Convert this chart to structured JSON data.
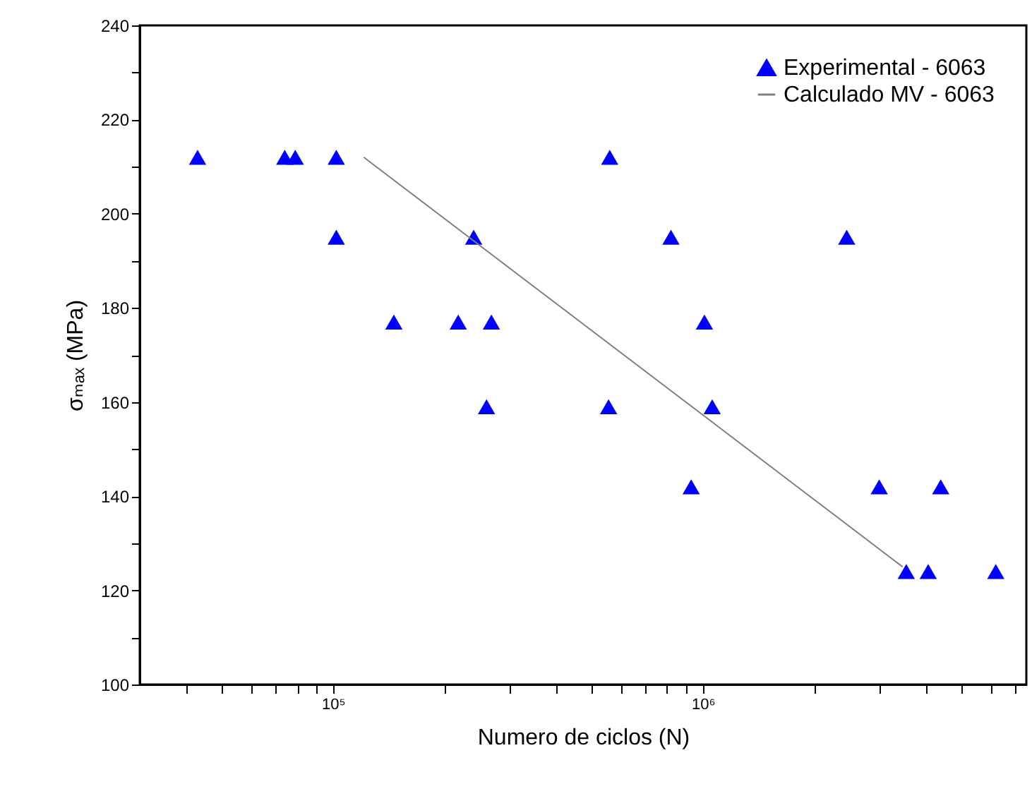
{
  "chart_data": {
    "type": "scatter",
    "xlabel": "Numero de ciclos (N)",
    "ylabel": "σₘₐₓ (MPa)",
    "log": "x",
    "legend": "top right",
    "grid": false,
    "xlim": [
      30000,
      7500000
    ],
    "xticks": [
      {
        "value": 40000,
        "label": null
      },
      {
        "value": 50000,
        "label": null
      },
      {
        "value": 60000,
        "label": null
      },
      {
        "value": 70000,
        "label": null
      },
      {
        "value": 80000,
        "label": null
      },
      {
        "value": 90000,
        "label": null
      },
      {
        "value": 100000,
        "label": "10⁵"
      },
      {
        "value": 200000,
        "label": null
      },
      {
        "value": 300000,
        "label": null
      },
      {
        "value": 400000,
        "label": null
      },
      {
        "value": 500000,
        "label": null
      },
      {
        "value": 600000,
        "label": null
      },
      {
        "value": 700000,
        "label": null
      },
      {
        "value": 800000,
        "label": null
      },
      {
        "value": 900000,
        "label": null
      },
      {
        "value": 1000000,
        "label": "10⁶"
      },
      {
        "value": 2000000,
        "label": null
      },
      {
        "value": 3000000,
        "label": null
      },
      {
        "value": 4000000,
        "label": null
      },
      {
        "value": 5000000,
        "label": null
      },
      {
        "value": 6000000,
        "label": null
      },
      {
        "value": 7000000,
        "label": null
      }
    ],
    "ylim": [
      100,
      240
    ],
    "yticks": [
      100,
      {
        "value": 110,
        "label": null
      },
      120,
      {
        "value": 130,
        "label": null
      },
      140,
      {
        "value": 150,
        "label": null
      },
      160,
      {
        "value": 170,
        "label": null
      },
      180,
      {
        "value": 190,
        "label": null
      },
      200,
      {
        "value": 210,
        "label": null
      },
      220,
      {
        "value": 230,
        "label": null
      },
      240
    ],
    "series": [
      {
        "name": "Experimental - 6063",
        "marker": "triangle",
        "color": "#0000ff",
        "x": [
          43000,
          74000,
          79000,
          102000,
          102000,
          146000,
          218000,
          268000,
          240000,
          260000,
          560000,
          556000,
          820000,
          1010000,
          1060000,
          930000,
          2450000,
          3000000,
          4400000,
          3550000,
          4070000,
          6200000
        ],
        "values": [
          212,
          212,
          212,
          212,
          195,
          177,
          177,
          177,
          195,
          159,
          212,
          159,
          195,
          177,
          159,
          142,
          195,
          142,
          142,
          124,
          124,
          124
        ]
      },
      {
        "name": "Calculado MV - 6063",
        "type": "line",
        "marker": "none",
        "line_style": "solid",
        "color": "#808080",
        "x": [
          121000,
          3470000
        ],
        "values": [
          212,
          125
        ]
      }
    ]
  }
}
